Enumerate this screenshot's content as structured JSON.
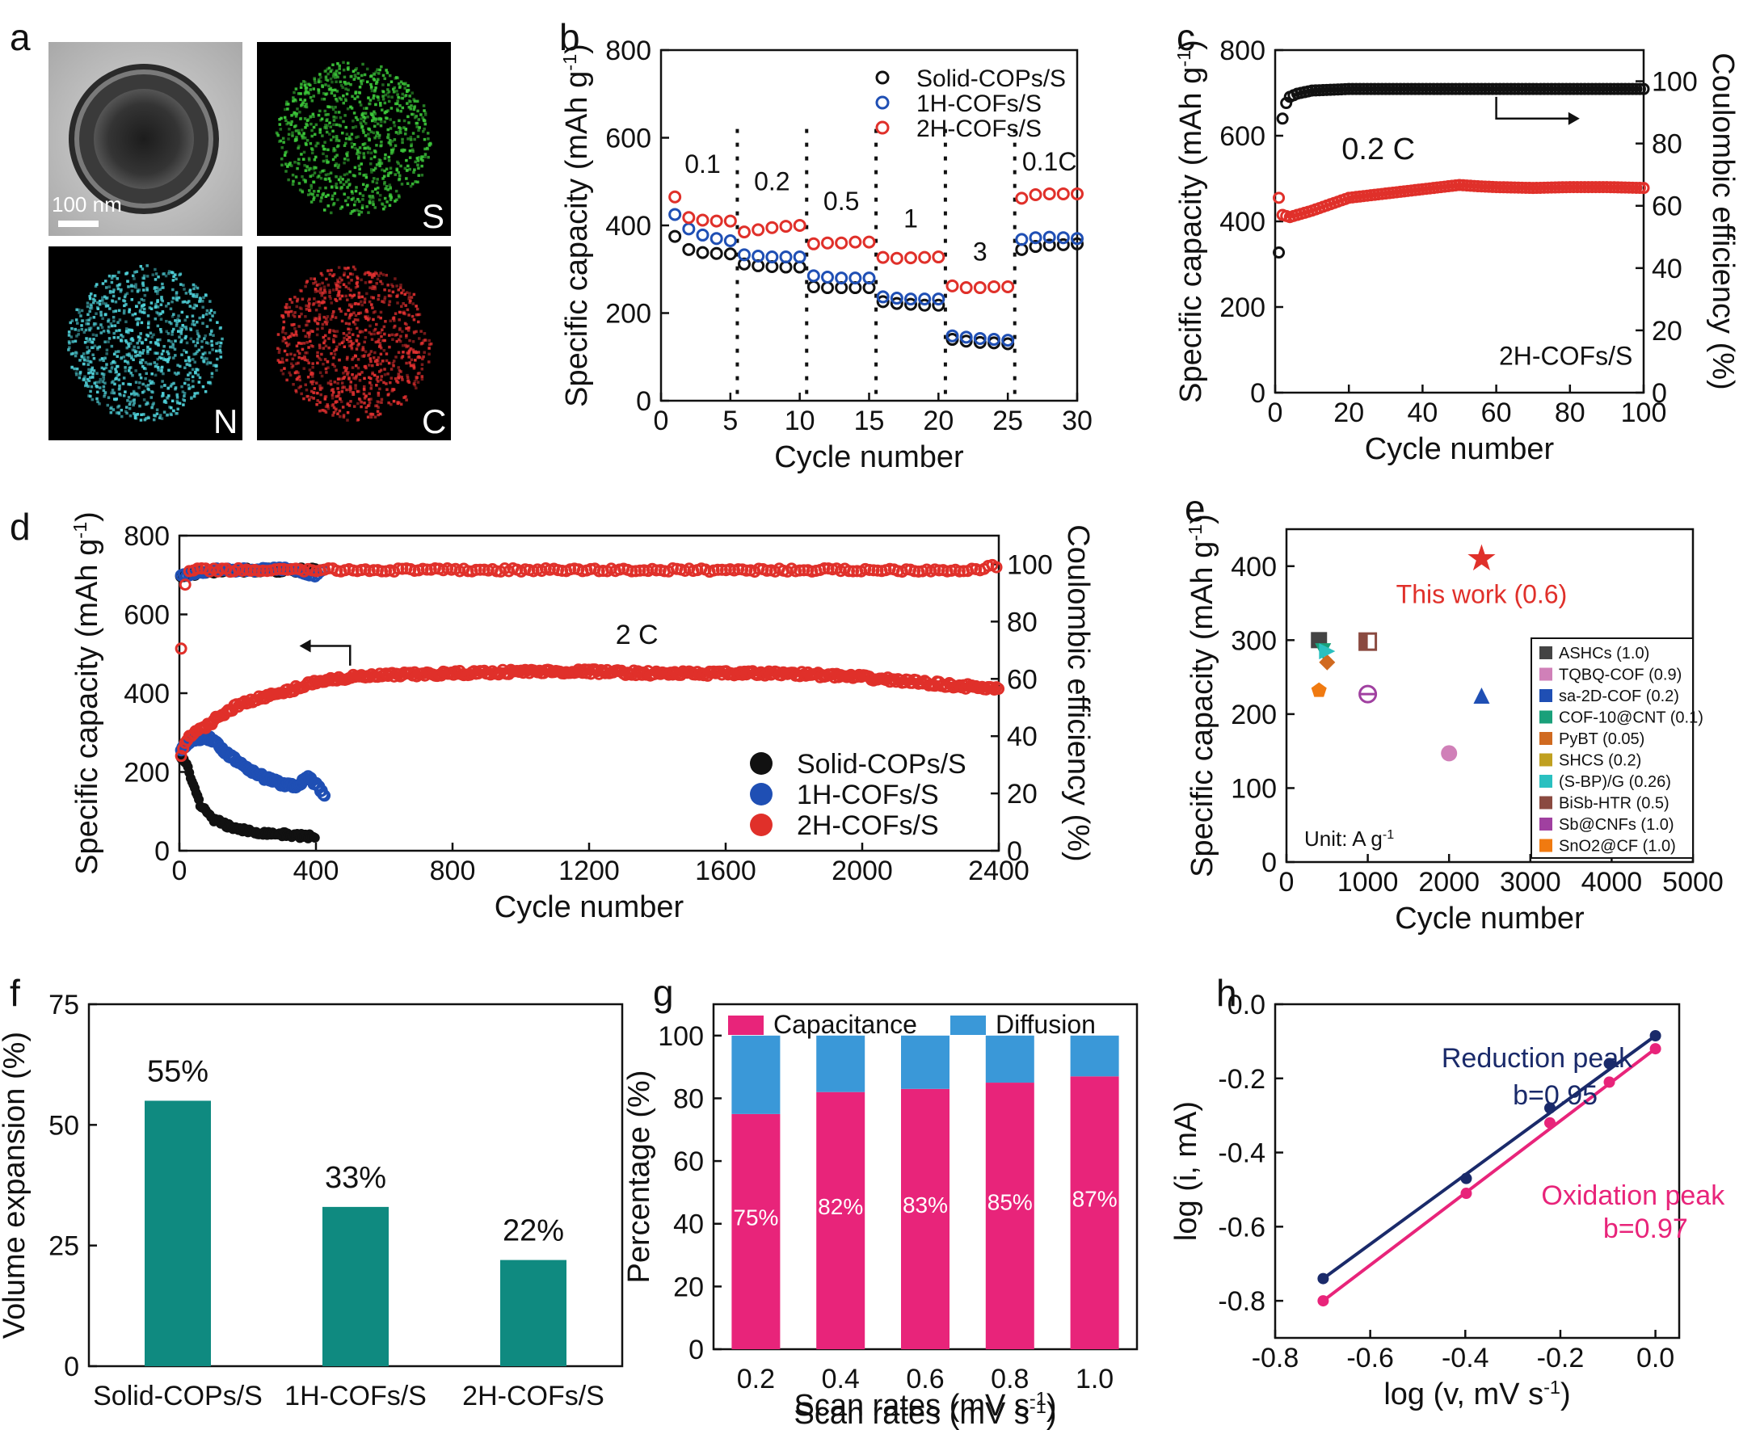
{
  "panels": {
    "a": {
      "letter": "a",
      "scale_bar": "100 nm",
      "maps": [
        {
          "label": "S",
          "color": "#3cc83a"
        },
        {
          "label": "N",
          "color": "#4fd0d8"
        },
        {
          "label": "C",
          "color": "#e03030"
        }
      ]
    },
    "b": {
      "letter": "b"
    },
    "c": {
      "letter": "c"
    },
    "d": {
      "letter": "d"
    },
    "e": {
      "letter": "e"
    },
    "f": {
      "letter": "f"
    },
    "g": {
      "letter": "g"
    },
    "h": {
      "letter": "h"
    }
  },
  "chart_data": [
    {
      "id": "b",
      "type": "scatter",
      "xlabel": "Cycle number",
      "ylabel": "Specific capacity (mAh g-1)",
      "xlim": [
        0,
        30
      ],
      "ylim": [
        0,
        800
      ],
      "xticks": [
        0,
        5,
        10,
        15,
        20,
        25,
        30
      ],
      "yticks": [
        0,
        200,
        400,
        600,
        800
      ],
      "dividers": [
        5.5,
        10.5,
        15.5,
        20.5,
        25.5
      ],
      "rate_labels": [
        {
          "text": "0.1",
          "x": 3.0,
          "y": 520
        },
        {
          "text": "0.2",
          "x": 8.0,
          "y": 480
        },
        {
          "text": "0.5",
          "x": 13.0,
          "y": 435
        },
        {
          "text": "1",
          "x": 18.0,
          "y": 395
        },
        {
          "text": "3",
          "x": 23.0,
          "y": 320
        },
        {
          "text": "0.1C",
          "x": 28.0,
          "y": 525
        }
      ],
      "series": [
        {
          "name": "Solid-COPs/S",
          "color": "#111111",
          "values": [
            375,
            345,
            338,
            336,
            335,
            312,
            308,
            306,
            305,
            305,
            260,
            258,
            258,
            258,
            258,
            226,
            222,
            220,
            218,
            218,
            140,
            136,
            133,
            132,
            130,
            345,
            352,
            355,
            356,
            358
          ]
        },
        {
          "name": "1H-COFs/S",
          "color": "#1f4fb4",
          "values": [
            425,
            392,
            378,
            370,
            365,
            333,
            330,
            328,
            328,
            328,
            285,
            282,
            280,
            280,
            280,
            237,
            234,
            232,
            232,
            232,
            148,
            145,
            142,
            140,
            138,
            368,
            372,
            373,
            372,
            370
          ]
        },
        {
          "name": "2H-COFs/S",
          "color": "#e0302a",
          "values": [
            465,
            418,
            412,
            410,
            410,
            385,
            390,
            395,
            398,
            400,
            358,
            360,
            360,
            362,
            362,
            327,
            325,
            326,
            327,
            328,
            262,
            258,
            258,
            260,
            260,
            462,
            470,
            472,
            472,
            472
          ]
        }
      ]
    },
    {
      "id": "c",
      "type": "scatter",
      "xlabel": "Cycle number",
      "ylabel": "Specific capacity (mAh g-1)",
      "ylabel2": "Coulombic efficiency (%)",
      "xlim": [
        0,
        100
      ],
      "ylim": [
        0,
        800
      ],
      "y2lim": [
        0,
        110
      ],
      "xticks": [
        0,
        20,
        40,
        60,
        80,
        100
      ],
      "yticks": [
        0,
        200,
        400,
        600,
        800
      ],
      "y2ticks": [
        0,
        20,
        40,
        60,
        80,
        100
      ],
      "rate_label": "0.2 C",
      "sample_label": "2H-COFs/S",
      "capacity": {
        "name": "2H-COFs/S capacity",
        "color": "#e0302a",
        "points": [
          [
            1,
            455
          ],
          [
            2,
            415
          ],
          [
            4,
            410
          ],
          [
            6,
            415
          ],
          [
            10,
            425
          ],
          [
            15,
            440
          ],
          [
            20,
            455
          ],
          [
            25,
            460
          ],
          [
            30,
            465
          ],
          [
            35,
            470
          ],
          [
            40,
            475
          ],
          [
            45,
            480
          ],
          [
            50,
            485
          ],
          [
            55,
            482
          ],
          [
            60,
            480
          ],
          [
            70,
            478
          ],
          [
            80,
            480
          ],
          [
            90,
            480
          ],
          [
            100,
            478
          ]
        ]
      },
      "efficiency": {
        "name": "Coulombic efficiency",
        "color": "#111111",
        "points": [
          [
            1,
            45
          ],
          [
            2,
            88
          ],
          [
            3,
            93
          ],
          [
            4,
            95
          ],
          [
            6,
            96
          ],
          [
            10,
            97
          ],
          [
            20,
            97.5
          ],
          [
            40,
            97.5
          ],
          [
            60,
            97.5
          ],
          [
            80,
            97.5
          ],
          [
            100,
            97.5
          ]
        ]
      }
    },
    {
      "id": "d",
      "type": "scatter",
      "xlabel": "Cycle number",
      "ylabel": "Specific capacity (mAh g-1)",
      "ylabel2": "Coulombic efficiency (%)",
      "xlim": [
        0,
        2400
      ],
      "ylim": [
        0,
        800
      ],
      "y2lim": [
        0,
        110
      ],
      "xticks": [
        0,
        400,
        800,
        1200,
        1600,
        2000,
        2400
      ],
      "yticks": [
        0,
        200,
        400,
        600,
        800
      ],
      "y2ticks": [
        0,
        20,
        40,
        60,
        80,
        100
      ],
      "rate_label": "2 C",
      "series": [
        {
          "name": "Solid-COPs/S",
          "color": "#111111",
          "capacity": [
            [
              5,
              240
            ],
            [
              20,
              220
            ],
            [
              40,
              170
            ],
            [
              60,
              120
            ],
            [
              80,
              95
            ],
            [
              100,
              80
            ],
            [
              150,
              60
            ],
            [
              200,
              50
            ],
            [
              250,
              45
            ],
            [
              300,
              42
            ],
            [
              350,
              38
            ],
            [
              400,
              35
            ]
          ],
          "efficiency": [
            [
              5,
              96
            ],
            [
              50,
              97
            ],
            [
              100,
              97.5
            ],
            [
              200,
              98
            ],
            [
              300,
              98
            ],
            [
              400,
              98
            ]
          ]
        },
        {
          "name": "1H-COFs/S",
          "color": "#1f4fb4",
          "capacity": [
            [
              5,
              260
            ],
            [
              20,
              270
            ],
            [
              50,
              285
            ],
            [
              80,
              290
            ],
            [
              110,
              270
            ],
            [
              150,
              240
            ],
            [
              200,
              210
            ],
            [
              250,
              185
            ],
            [
              300,
              170
            ],
            [
              340,
              165
            ],
            [
              380,
              185
            ],
            [
              410,
              160
            ],
            [
              425,
              140
            ]
          ],
          "efficiency": [
            [
              5,
              96
            ],
            [
              50,
              97
            ],
            [
              100,
              98
            ],
            [
              200,
              98
            ],
            [
              300,
              98.5
            ],
            [
              400,
              96
            ],
            [
              420,
              98
            ]
          ]
        },
        {
          "name": "2H-COFs/S",
          "color": "#e0302a",
          "capacity": [
            [
              5,
              240
            ],
            [
              20,
              280
            ],
            [
              50,
              300
            ],
            [
              100,
              330
            ],
            [
              150,
              360
            ],
            [
              200,
              380
            ],
            [
              300,
              400
            ],
            [
              400,
              430
            ],
            [
              500,
              440
            ],
            [
              600,
              445
            ],
            [
              800,
              450
            ],
            [
              1000,
              455
            ],
            [
              1200,
              455
            ],
            [
              1400,
              450
            ],
            [
              1600,
              450
            ],
            [
              1800,
              450
            ],
            [
              2000,
              440
            ],
            [
              2200,
              425
            ],
            [
              2400,
              410
            ]
          ],
          "efficiency": [
            [
              5,
              70
            ],
            [
              20,
              98
            ],
            [
              100,
              98
            ],
            [
              400,
              98
            ],
            [
              800,
              98
            ],
            [
              1200,
              98
            ],
            [
              1600,
              98
            ],
            [
              2000,
              98
            ],
            [
              2350,
              98
            ],
            [
              2380,
              100
            ],
            [
              2400,
              99
            ]
          ]
        }
      ]
    },
    {
      "id": "e",
      "type": "scatter",
      "xlabel": "Cycle number",
      "ylabel": "Specific capacity (mAh g-1)",
      "xlim": [
        0,
        5000
      ],
      "ylim": [
        0,
        450
      ],
      "xticks": [
        0,
        1000,
        2000,
        3000,
        4000,
        5000
      ],
      "yticks": [
        0,
        100,
        200,
        300,
        400
      ],
      "highlight": {
        "name": "This work (0.6)",
        "x": 2400,
        "y": 410,
        "color": "#e0302a"
      },
      "unit_note": "Unit: A g-1",
      "points": [
        {
          "name": "ASHCs (1.0)",
          "x": 400,
          "y": 300,
          "color": "#444444",
          "marker": "square"
        },
        {
          "name": "TQBQ-COF (0.9)",
          "x": 2000,
          "y": 147,
          "color": "#d080b8",
          "marker": "circle"
        },
        {
          "name": "sa-2D-COF (0.2)",
          "x": 2400,
          "y": 225,
          "color": "#1f4fb4",
          "marker": "triangle-up"
        },
        {
          "name": "COF-10@CNT (0.1)",
          "x": 450,
          "y": 285,
          "color": "#1aa07a",
          "marker": "triangle-down"
        },
        {
          "name": "PyBT (0.05)",
          "x": 500,
          "y": 270,
          "color": "#d06a20",
          "marker": "diamond"
        },
        {
          "name": "SHCS (0.2)",
          "x": 1000,
          "y": 300,
          "color": "#c0a020",
          "marker": "triangle-left"
        },
        {
          "name": "(S-BP)/G (0.26)",
          "x": 500,
          "y": 285,
          "color": "#2ac0c0",
          "marker": "triangle-right"
        },
        {
          "name": "BiSb-HTR (0.5)",
          "x": 1000,
          "y": 298,
          "color": "#8a4a40",
          "marker": "half-square"
        },
        {
          "name": "Sb@CNFs (1.0)",
          "x": 1000,
          "y": 227,
          "color": "#a040a0",
          "marker": "circle-line"
        },
        {
          "name": "SnO2@CF (1.0)",
          "x": 400,
          "y": 232,
          "color": "#f07a10",
          "marker": "pentagon"
        }
      ]
    },
    {
      "id": "f",
      "type": "bar",
      "ylabel": "Volume expansion (%)",
      "ylim": [
        0,
        75
      ],
      "yticks": [
        0,
        25,
        50,
        75
      ],
      "categories": [
        "Solid-COPs/S",
        "1H-COFs/S",
        "2H-COFs/S"
      ],
      "values": [
        55,
        33,
        22
      ],
      "labels": [
        "55%",
        "33%",
        "22%"
      ],
      "color": "#0f8a80"
    },
    {
      "id": "g",
      "type": "bar",
      "xlabel": "Scan rates (mV s-1)",
      "ylabel": "Percentage (%)",
      "ylim": [
        0,
        110
      ],
      "yticks": [
        0,
        20,
        40,
        60,
        80,
        100
      ],
      "categories": [
        "0.2",
        "0.4",
        "0.6",
        "0.8",
        "1.0"
      ],
      "series": [
        {
          "name": "Capacitance",
          "color": "#e8247a",
          "values": [
            75,
            82,
            83,
            85,
            87
          ]
        },
        {
          "name": "Diffusion",
          "color": "#3a98d8",
          "values": [
            25,
            18,
            17,
            15,
            13
          ]
        }
      ],
      "labels": [
        "75%",
        "82%",
        "83%",
        "85%",
        "87%"
      ]
    },
    {
      "id": "h",
      "type": "line",
      "xlabel": "log (v, mV s-1)",
      "ylabel": "log (i, mA)",
      "xlim": [
        -0.8,
        0.05
      ],
      "ylim": [
        -0.9,
        0.0
      ],
      "xticks": [
        -0.8,
        -0.6,
        -0.4,
        -0.2,
        0.0
      ],
      "yticks": [
        -0.8,
        -0.6,
        -0.4,
        -0.2,
        0.0
      ],
      "series": [
        {
          "name": "Reduction peak",
          "fit": "b=0.95",
          "color": "#1a2a6a",
          "points": [
            [
              -0.699,
              -0.74
            ],
            [
              -0.398,
              -0.47
            ],
            [
              -0.222,
              -0.28
            ],
            [
              -0.097,
              -0.16
            ],
            [
              0.0,
              -0.085
            ]
          ]
        },
        {
          "name": "Oxidation peak",
          "fit": "b=0.97",
          "color": "#e8247a",
          "points": [
            [
              -0.699,
              -0.8
            ],
            [
              -0.398,
              -0.51
            ],
            [
              -0.222,
              -0.32
            ],
            [
              -0.097,
              -0.21
            ],
            [
              0.0,
              -0.12
            ]
          ]
        }
      ]
    }
  ]
}
